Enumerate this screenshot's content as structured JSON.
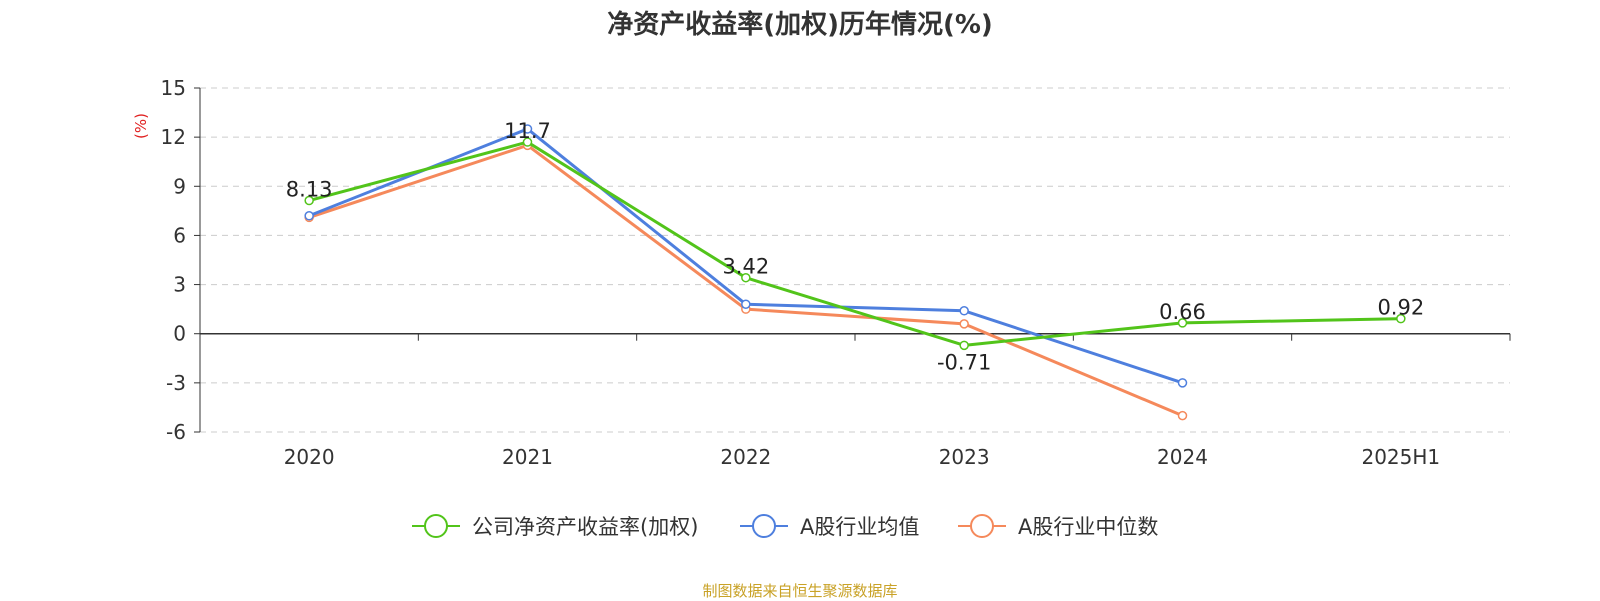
{
  "chart_data": {
    "type": "line",
    "title": "净资产收益率(加权)历年情况(%)",
    "ylabel": "(%)",
    "xlabel": "",
    "categories": [
      "2020",
      "2021",
      "2022",
      "2023",
      "2024",
      "2025H1"
    ],
    "ylim": [
      -6,
      15
    ],
    "yticks": [
      15,
      12,
      9,
      6,
      3,
      0,
      -3,
      -6
    ],
    "grid": true,
    "legend_position": "bottom",
    "series": [
      {
        "name": "公司净资产收益率(加权)",
        "color": "#52c41a",
        "values": [
          8.13,
          11.7,
          3.42,
          -0.71,
          0.66,
          0.92
        ],
        "labels": [
          "8.13",
          "11.7",
          "3.42",
          "-0.71",
          "0.66",
          "0.92"
        ]
      },
      {
        "name": "A股行业均值",
        "color": "#4e7fde",
        "values": [
          7.2,
          12.5,
          1.8,
          1.4,
          -3.0,
          null
        ]
      },
      {
        "name": "A股行业中位数",
        "color": "#f5895b",
        "values": [
          7.1,
          11.5,
          1.5,
          0.6,
          -5.0,
          null
        ]
      }
    ]
  },
  "source_text": "制图数据来自恒生聚源数据库",
  "colors": {
    "title": "#333333",
    "axis": "#333333",
    "ylabel": "#e02020",
    "source": "#c9a227",
    "grid": "#cccccc"
  }
}
